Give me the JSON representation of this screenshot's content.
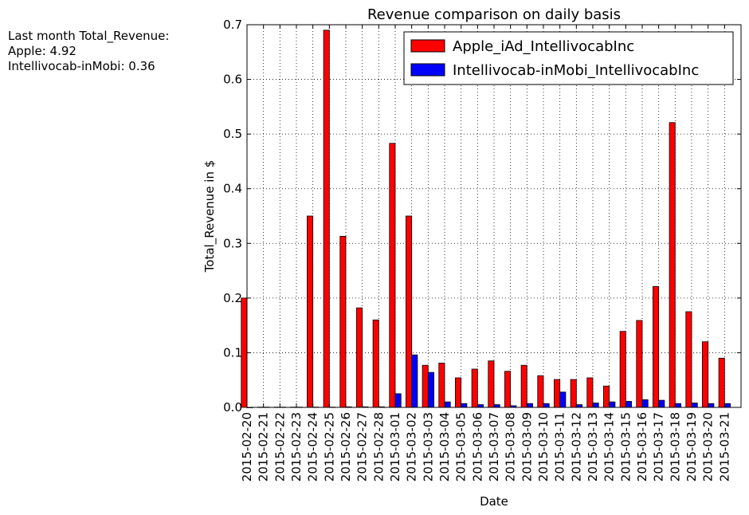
{
  "summary": {
    "heading": "Last month Total_Revenue:",
    "line1": "Apple: 4.92",
    "line2": "Intellivocab-inMobi: 0.36"
  },
  "chart_data": {
    "type": "bar",
    "title": "Revenue comparison on daily basis",
    "xlabel": "Date",
    "ylabel": "Total_Revenue in $",
    "ylim": [
      0,
      0.7
    ],
    "yticks": [
      "0.0",
      "0.1",
      "0.2",
      "0.3",
      "0.4",
      "0.5",
      "0.6",
      "0.7"
    ],
    "grid": true,
    "legend_position": "top-right",
    "categories": [
      "2015-02-20",
      "2015-02-21",
      "2015-02-22",
      "2015-02-23",
      "2015-02-24",
      "2015-02-25",
      "2015-02-26",
      "2015-02-27",
      "2015-02-28",
      "2015-03-01",
      "2015-03-02",
      "2015-03-03",
      "2015-03-04",
      "2015-03-05",
      "2015-03-06",
      "2015-03-07",
      "2015-03-08",
      "2015-03-09",
      "2015-03-10",
      "2015-03-11",
      "2015-03-12",
      "2015-03-13",
      "2015-03-14",
      "2015-03-15",
      "2015-03-16",
      "2015-03-17",
      "2015-03-18",
      "2015-03-19",
      "2015-03-20",
      "2015-03-21"
    ],
    "series": [
      {
        "name": "Apple_iAd_IntellivocabInc",
        "color": "#ff0000",
        "values": [
          0.2,
          0.0005,
          0.0005,
          0.0005,
          0.35,
          0.69,
          0.313,
          0.182,
          0.16,
          0.483,
          0.35,
          0.077,
          0.081,
          0.054,
          0.07,
          0.085,
          0.066,
          0.077,
          0.058,
          0.051,
          0.051,
          0.054,
          0.039,
          0.139,
          0.159,
          0.221,
          0.521,
          0.175,
          0.12,
          0.09
        ]
      },
      {
        "name": "Intellivocab-inMobi_IntellivocabInc",
        "color": "#0000ff",
        "values": [
          0.0,
          0.0005,
          0.0005,
          0.0005,
          0.0005,
          0.0005,
          0.001,
          0.001,
          0.001,
          0.025,
          0.096,
          0.064,
          0.01,
          0.007,
          0.005,
          0.005,
          0.003,
          0.007,
          0.007,
          0.028,
          0.005,
          0.008,
          0.01,
          0.011,
          0.014,
          0.013,
          0.007,
          0.008,
          0.007,
          0.007
        ]
      }
    ]
  }
}
